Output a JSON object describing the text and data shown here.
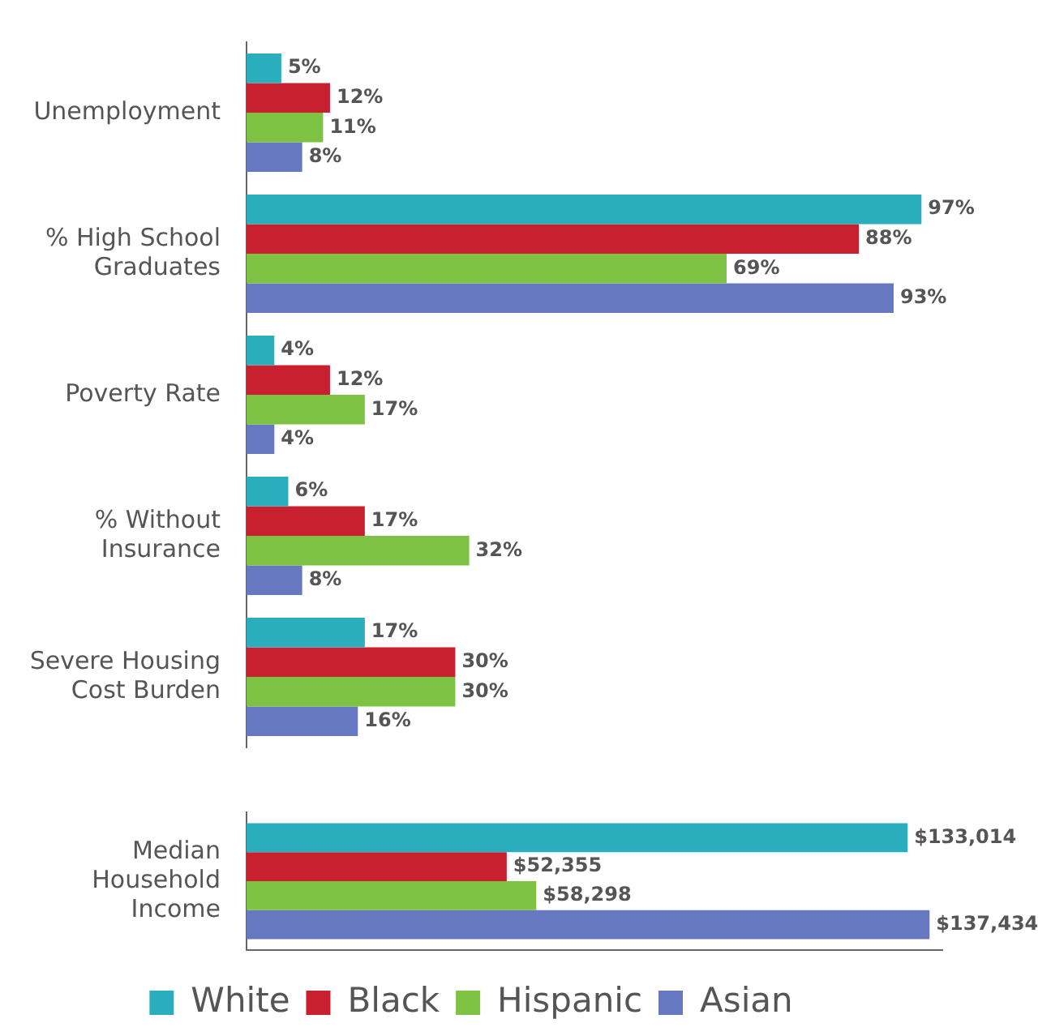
{
  "chart_data": [
    {
      "type": "bar",
      "orientation": "horizontal",
      "categories": [
        "Unemployment",
        "% High School Graduates",
        "Poverty Rate",
        "% Without Insurance",
        "Severe Housing Cost Burden"
      ],
      "tick_labels": "y",
      "legend": false,
      "series": [
        {
          "color": "#2aaebe",
          "values": [
            5,
            97,
            4,
            6,
            17
          ],
          "value_labels": [
            "5%",
            "97%",
            "4%",
            "6%",
            "17%"
          ]
        },
        {
          "color": "#c8202f",
          "values": [
            12,
            88,
            12,
            17,
            30
          ],
          "value_labels": [
            "12%",
            "88%",
            "12%",
            "17%",
            "30%"
          ]
        },
        {
          "color": "#7dc242",
          "values": [
            11,
            69,
            17,
            32,
            30
          ],
          "value_labels": [
            "11%",
            "69%",
            "17%",
            "32%",
            "30%"
          ]
        },
        {
          "color": "#6679c0",
          "values": [
            8,
            93,
            4,
            8,
            16
          ],
          "value_labels": [
            "8%",
            "93%",
            "4%",
            "8%",
            "16%"
          ]
        }
      ]
    },
    {
      "type": "bar",
      "orientation": "horizontal",
      "categories": [
        "Median Household Income"
      ],
      "tick_labels": "y",
      "legend": "bottom",
      "series": [
        {
          "name": "White",
          "color": "#2aaebe",
          "values": [
            133014
          ],
          "value_labels": [
            "$133,014"
          ]
        },
        {
          "name": "Black",
          "color": "#c8202f",
          "values": [
            52355
          ],
          "value_labels": [
            "$52,355"
          ]
        },
        {
          "name": "Hispanic",
          "color": "#7dc242",
          "values": [
            58298
          ],
          "value_labels": [
            "$58,298"
          ]
        },
        {
          "name": "Asian",
          "color": "#6679c0",
          "values": [
            137434
          ],
          "value_labels": [
            "$137,434"
          ]
        }
      ]
    }
  ]
}
